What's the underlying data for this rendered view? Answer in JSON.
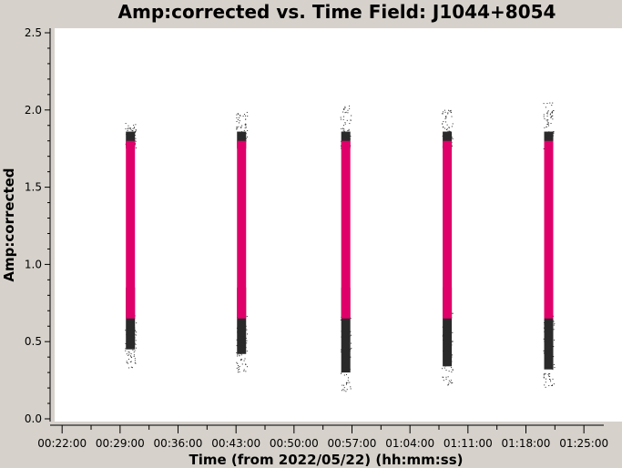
{
  "chart_data": {
    "type": "scatter",
    "title": "Amp:corrected vs. Time Field: J1044+8054",
    "xlabel": "Time (from 2022/05/22) (hh:mm:ss)",
    "ylabel": "Amp:corrected",
    "x_ticks": [
      "00:22:00",
      "00:29:00",
      "00:36:00",
      "00:43:00",
      "00:50:00",
      "00:57:00",
      "01:04:00",
      "01:11:00",
      "01:18:00",
      "01:25:00"
    ],
    "y_ticks": [
      "0.0",
      "0.5",
      "1.0",
      "1.5",
      "2.0",
      "2.5"
    ],
    "ylim": [
      0,
      2.5
    ],
    "xlim": [
      "00:21:06",
      "01:29:36"
    ],
    "grid": false,
    "colors": {
      "flagged": "#2a2a2a",
      "unflagged": "#e0006a",
      "background": "#d6d2cb",
      "plot_area": "#ffffff"
    },
    "series": [
      {
        "scans": [
          {
            "time": "00:30:15",
            "dark_min": 0.33,
            "dark_max": 1.92,
            "pink_min": 0.65,
            "pink_max": 1.8
          },
          {
            "time": "00:43:40",
            "dark_min": 0.3,
            "dark_max": 1.99,
            "pink_min": 0.65,
            "pink_max": 1.8
          },
          {
            "time": "00:56:15",
            "dark_min": 0.18,
            "dark_max": 2.03,
            "pink_min": 0.65,
            "pink_max": 1.8
          },
          {
            "time": "01:08:30",
            "dark_min": 0.22,
            "dark_max": 2.01,
            "pink_min": 0.65,
            "pink_max": 1.8
          },
          {
            "time": "01:20:45",
            "dark_min": 0.2,
            "dark_max": 2.05,
            "pink_min": 0.65,
            "pink_max": 1.8
          }
        ]
      }
    ]
  }
}
